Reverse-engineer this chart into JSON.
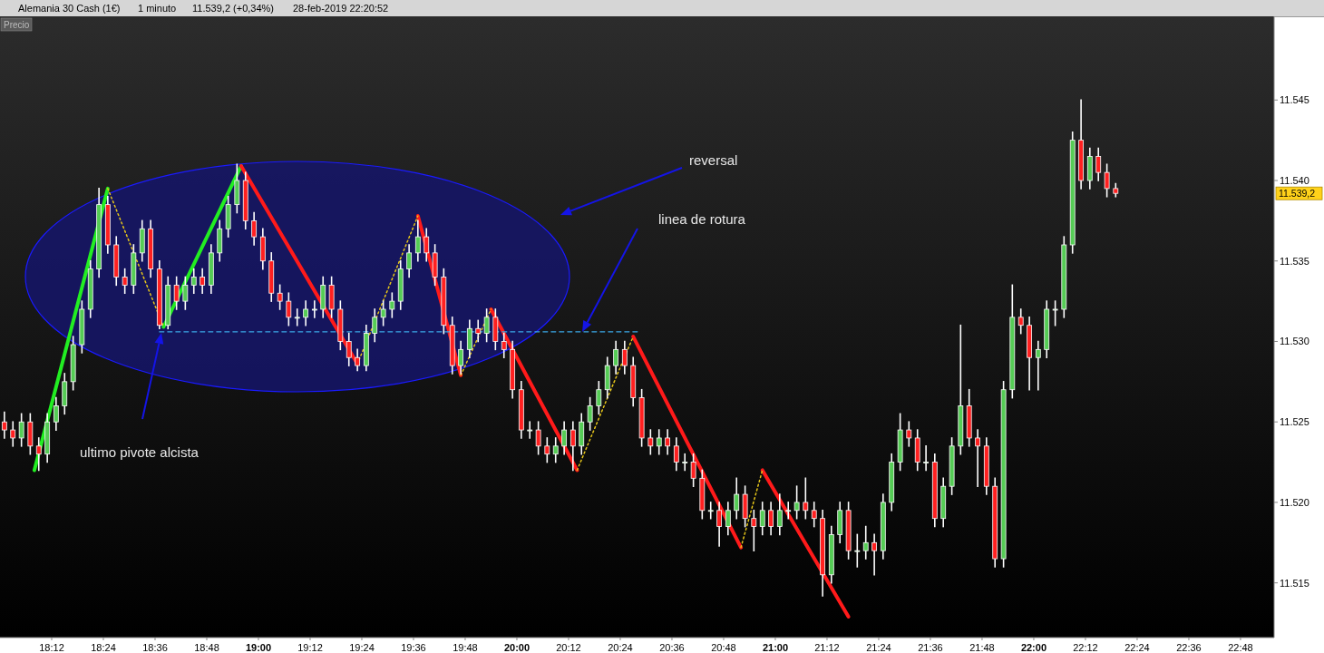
{
  "chart_data": {
    "type": "candlestick",
    "title": "Alemania 30 Cash (1€)",
    "subtitle": "1 minuto",
    "x": [
      18.017,
      18.05,
      18.083,
      18.117,
      18.15,
      18.183,
      18.217,
      18.25,
      18.283,
      18.317,
      18.35,
      18.383,
      18.417,
      18.45,
      18.483,
      18.517,
      18.55,
      18.583,
      18.617,
      18.65,
      18.683,
      18.717,
      18.75,
      18.783,
      18.817,
      18.85,
      18.883,
      18.917,
      18.95,
      18.983,
      19.017,
      19.05,
      19.083,
      19.117,
      19.15,
      19.183,
      19.217,
      19.25,
      19.283,
      19.317,
      19.35,
      19.383,
      19.417,
      19.45,
      19.483,
      19.517,
      19.55,
      19.583,
      19.617,
      19.65,
      19.683,
      19.717,
      19.75,
      19.783,
      19.817,
      19.85,
      19.883,
      19.917,
      19.95,
      19.983,
      20.017,
      20.05,
      20.083,
      20.117,
      20.15,
      20.183,
      20.217,
      20.25,
      20.283,
      20.317,
      20.35,
      20.383,
      20.417,
      20.45,
      20.483,
      20.517,
      20.55,
      20.583,
      20.617,
      20.65,
      20.683,
      20.717,
      20.75,
      20.783,
      20.817,
      20.85,
      20.883,
      20.917,
      20.95,
      20.983,
      21.017,
      21.05,
      21.083,
      21.117,
      21.15,
      21.183,
      21.217,
      21.25,
      21.283,
      21.317,
      21.35,
      21.383,
      21.417,
      21.45,
      21.483,
      21.517,
      21.55,
      21.583,
      21.617,
      21.65,
      21.683,
      21.717,
      21.75,
      21.783,
      21.817,
      21.85,
      21.883,
      21.917,
      21.95,
      21.983,
      22.017,
      22.05,
      22.083,
      22.117,
      22.15,
      22.183,
      22.217,
      22.25,
      22.283,
      22.317
    ],
    "ohlc": [
      [
        11525,
        11525.6,
        11524,
        11524.5
      ],
      [
        11524.5,
        11525,
        11523.5,
        11524
      ],
      [
        11524,
        11525.5,
        11523.5,
        11525
      ],
      [
        11525,
        11525.5,
        11523,
        11523.5
      ],
      [
        11523.5,
        11524,
        11522,
        11523
      ],
      [
        11523,
        11525.5,
        11522.5,
        11525
      ],
      [
        11525,
        11526.5,
        11524.5,
        11526
      ],
      [
        11526,
        11528,
        11525.5,
        11527.5
      ],
      [
        11527.5,
        11530.3,
        11527,
        11529.8
      ],
      [
        11529.8,
        11532.5,
        11529.3,
        11532
      ],
      [
        11532,
        11535,
        11531.5,
        11534.5
      ],
      [
        11534.5,
        11539.5,
        11534,
        11538.5
      ],
      [
        11538.5,
        11539,
        11535.5,
        11536
      ],
      [
        11536,
        11536.5,
        11533.5,
        11534
      ],
      [
        11534,
        11534.5,
        11533,
        11533.5
      ],
      [
        11533.5,
        11536,
        11533,
        11535.5
      ],
      [
        11535.5,
        11537.5,
        11535,
        11537
      ],
      [
        11537,
        11537.5,
        11534,
        11534.5
      ],
      [
        11534.5,
        11535,
        11530.8,
        11531
      ],
      [
        11531,
        11534,
        11530.8,
        11533.5
      ],
      [
        11533.5,
        11534,
        11532,
        11532.5
      ],
      [
        11532.5,
        11534,
        11532,
        11533.5
      ],
      [
        11533.5,
        11534.5,
        11533,
        11534
      ],
      [
        11534,
        11534.5,
        11533,
        11533.5
      ],
      [
        11533.5,
        11536,
        11533,
        11535.5
      ],
      [
        11535.5,
        11537.5,
        11535,
        11537
      ],
      [
        11537,
        11539,
        11536.5,
        11538.5
      ],
      [
        11538.5,
        11541,
        11538,
        11540
      ],
      [
        11540,
        11540.5,
        11537,
        11537.5
      ],
      [
        11537.5,
        11538,
        11536,
        11536.5
      ],
      [
        11536.5,
        11537,
        11534.5,
        11535
      ],
      [
        11535,
        11535.5,
        11532.5,
        11533
      ],
      [
        11533,
        11533.5,
        11532,
        11532.5
      ],
      [
        11532.5,
        11533,
        11531,
        11531.5
      ],
      [
        11531.5,
        11532,
        11531,
        11531.5
      ],
      [
        11531.5,
        11532.5,
        11531,
        11532
      ],
      [
        11532,
        11532.5,
        11531.5,
        11532
      ],
      [
        11532,
        11534,
        11531.5,
        11533.5
      ],
      [
        11533.5,
        11534,
        11531.5,
        11532
      ],
      [
        11532,
        11532.5,
        11529.5,
        11530
      ],
      [
        11530,
        11530.5,
        11528.5,
        11529
      ],
      [
        11529,
        11529.5,
        11528.2,
        11528.5
      ],
      [
        11528.5,
        11531,
        11528.2,
        11530.5
      ],
      [
        11530.5,
        11532,
        11530,
        11531.5
      ],
      [
        11531.5,
        11532.5,
        11531,
        11532
      ],
      [
        11532,
        11533,
        11531.5,
        11532.5
      ],
      [
        11532.5,
        11535,
        11532,
        11534.5
      ],
      [
        11534.5,
        11536,
        11534,
        11535.5
      ],
      [
        11535.5,
        11537.5,
        11535,
        11536.5
      ],
      [
        11536.5,
        11537,
        11535,
        11535.5
      ],
      [
        11535.5,
        11536,
        11533.5,
        11534
      ],
      [
        11534,
        11534.5,
        11530.5,
        11531
      ],
      [
        11531,
        11531.5,
        11528,
        11528.5
      ],
      [
        11528.5,
        11530,
        11528,
        11529.5
      ],
      [
        11529.5,
        11531.3,
        11529,
        11530.8
      ],
      [
        11530.8,
        11531.3,
        11530,
        11530.5
      ],
      [
        11530.5,
        11532,
        11530,
        11531.5
      ],
      [
        11531.5,
        11532,
        11529.5,
        11530
      ],
      [
        11530,
        11530.5,
        11529,
        11529.5
      ],
      [
        11529.5,
        11530,
        11526.5,
        11527
      ],
      [
        11527,
        11527.5,
        11524,
        11524.5
      ],
      [
        11524.5,
        11525,
        11524,
        11524.5
      ],
      [
        11524.5,
        11525,
        11523,
        11523.5
      ],
      [
        11523.5,
        11524,
        11522.5,
        11523
      ],
      [
        11523,
        11524,
        11522.5,
        11523.5
      ],
      [
        11523.5,
        11525,
        11523,
        11524.5
      ],
      [
        11524.5,
        11525,
        11522,
        11523.5
      ],
      [
        11523.5,
        11525.5,
        11523,
        11525
      ],
      [
        11525,
        11526.5,
        11524.5,
        11526
      ],
      [
        11526,
        11527.5,
        11525.5,
        11527
      ],
      [
        11527,
        11529,
        11526.5,
        11528.5
      ],
      [
        11528.5,
        11530,
        11528,
        11529.5
      ],
      [
        11529.5,
        11530,
        11528,
        11528.5
      ],
      [
        11528.5,
        11529,
        11526,
        11526.5
      ],
      [
        11526.5,
        11527,
        11523.5,
        11524
      ],
      [
        11524,
        11524.5,
        11523,
        11523.5
      ],
      [
        11523.5,
        11524.5,
        11523,
        11524
      ],
      [
        11524,
        11524.5,
        11523,
        11523.5
      ],
      [
        11523.5,
        11524,
        11522,
        11522.5
      ],
      [
        11522.5,
        11523,
        11522,
        11522.5
      ],
      [
        11522.5,
        11523,
        11521,
        11521.5
      ],
      [
        11521.5,
        11522,
        11519,
        11519.5
      ],
      [
        11519.5,
        11520,
        11519,
        11519.5
      ],
      [
        11519.5,
        11520,
        11517.3,
        11518.5
      ],
      [
        11518.5,
        11520,
        11518,
        11519.5
      ],
      [
        11519.5,
        11521.5,
        11519,
        11520.5
      ],
      [
        11520.5,
        11521,
        11518.5,
        11519
      ],
      [
        11519,
        11519.5,
        11517,
        11518.5
      ],
      [
        11518.5,
        11520,
        11518,
        11519.5
      ],
      [
        11519.5,
        11520,
        11518,
        11518.5
      ],
      [
        11518.5,
        11520.5,
        11518,
        11519.5
      ],
      [
        11519.5,
        11520,
        11519,
        11519.5
      ],
      [
        11519.5,
        11521,
        11519,
        11520
      ],
      [
        11520,
        11521.5,
        11519,
        11519.5
      ],
      [
        11519.5,
        11520,
        11518.5,
        11519
      ],
      [
        11519,
        11519.5,
        11514.2,
        11515.5
      ],
      [
        11515.5,
        11518.5,
        11515,
        11518
      ],
      [
        11518,
        11520,
        11517.5,
        11519.5
      ],
      [
        11519.5,
        11520,
        11516.5,
        11517
      ],
      [
        11517,
        11518,
        11516,
        11517
      ],
      [
        11517,
        11518.5,
        11516.5,
        11517.5
      ],
      [
        11517.5,
        11518,
        11515.5,
        11517
      ],
      [
        11517,
        11520.5,
        11516.5,
        11520
      ],
      [
        11520,
        11523,
        11519.5,
        11522.5
      ],
      [
        11522.5,
        11525.5,
        11522,
        11524.5
      ],
      [
        11524.5,
        11525,
        11523.5,
        11524
      ],
      [
        11524,
        11524.5,
        11522,
        11522.5
      ],
      [
        11522.5,
        11523.5,
        11522,
        11522.5
      ],
      [
        11522.5,
        11523,
        11518.5,
        11519
      ],
      [
        11519,
        11521.5,
        11518.5,
        11521
      ],
      [
        11521,
        11524,
        11520.5,
        11523.5
      ],
      [
        11523.5,
        11531,
        11523,
        11526
      ],
      [
        11526,
        11527,
        11523.5,
        11524
      ],
      [
        11524,
        11524.5,
        11521,
        11523.5
      ],
      [
        11523.5,
        11524,
        11520.5,
        11521
      ],
      [
        11521,
        11521.5,
        11516,
        11516.5
      ],
      [
        11516.5,
        11527.5,
        11516,
        11527
      ],
      [
        11527,
        11533.5,
        11526.5,
        11531.5
      ],
      [
        11531.5,
        11532,
        11530.5,
        11531
      ],
      [
        11531,
        11531.5,
        11527,
        11529
      ],
      [
        11529,
        11530,
        11527,
        11529.5
      ],
      [
        11529.5,
        11532.5,
        11529,
        11532
      ],
      [
        11532,
        11532.5,
        11531,
        11532
      ],
      [
        11532,
        11536.5,
        11531.5,
        11536
      ],
      [
        11536,
        11543,
        11535.5,
        11542.5
      ],
      [
        11542.5,
        11545,
        11539.5,
        11540
      ],
      [
        11540,
        11542,
        11539.5,
        11541.5
      ],
      [
        11541.5,
        11542,
        11540,
        11540.5
      ],
      [
        11540.5,
        11541,
        11539,
        11539.5
      ],
      [
        11539.5,
        11539.8,
        11539,
        11539.2
      ]
    ],
    "series": [
      {
        "type": "line",
        "color": "#22ee22",
        "line_style": "solid",
        "x": [
          18.133,
          18.417
        ],
        "values": [
          11522,
          11539.5
        ]
      },
      {
        "type": "line",
        "color": "#22ee22",
        "line_style": "solid",
        "x": [
          18.633,
          18.933
        ],
        "values": [
          11530.9,
          11540.9
        ]
      },
      {
        "type": "line",
        "color": "#ff1a1a",
        "line_style": "solid",
        "x": [
          18.933,
          19.383
        ],
        "values": [
          11540.9,
          11528.6
        ]
      },
      {
        "type": "line",
        "color": "#ff1a1a",
        "line_style": "solid",
        "x": [
          19.617,
          19.783
        ],
        "values": [
          11537.8,
          11527.9
        ]
      },
      {
        "type": "line",
        "color": "#ff1a1a",
        "line_style": "solid",
        "x": [
          19.9,
          20.233
        ],
        "values": [
          11532,
          11522
        ]
      },
      {
        "type": "line",
        "color": "#ff1a1a",
        "line_style": "solid",
        "x": [
          20.45,
          20.867
        ],
        "values": [
          11530.3,
          11517.2
        ]
      },
      {
        "type": "line",
        "color": "#ff1a1a",
        "line_style": "solid",
        "x": [
          20.95,
          21.283
        ],
        "values": [
          11522,
          11512.9
        ]
      },
      {
        "type": "line",
        "color": "#e6c619",
        "line_style": "dotted",
        "x": [
          18.417,
          18.633
        ],
        "values": [
          11539.5,
          11530.9
        ]
      },
      {
        "type": "line",
        "color": "#e6c619",
        "line_style": "dotted",
        "x": [
          19.383,
          19.617
        ],
        "values": [
          11528.6,
          11537.8
        ]
      },
      {
        "type": "line",
        "color": "#e6c619",
        "line_style": "dotted",
        "x": [
          19.783,
          19.9
        ],
        "values": [
          11527.9,
          11532
        ]
      },
      {
        "type": "line",
        "color": "#e6c619",
        "line_style": "dotted",
        "x": [
          20.233,
          20.45
        ],
        "values": [
          11522,
          11530.3
        ]
      },
      {
        "type": "line",
        "color": "#e6c619",
        "line_style": "dotted",
        "x": [
          20.867,
          20.95
        ],
        "values": [
          11517.2,
          11522
        ]
      },
      {
        "type": "line",
        "color": "#3aa6e6",
        "line_style": "dashed",
        "x": [
          18.617,
          20.475
        ],
        "values": [
          11530.6,
          11530.6
        ]
      }
    ],
    "xlim": [
      18.0,
      22.93
    ],
    "xticks": [
      {
        "value": 18.2,
        "label": "18:12"
      },
      {
        "value": 18.4,
        "label": "18:24"
      },
      {
        "value": 18.6,
        "label": "18:36"
      },
      {
        "value": 18.8,
        "label": "18:48"
      },
      {
        "value": 19,
        "label": "19:00"
      },
      {
        "value": 19.2,
        "label": "19:12"
      },
      {
        "value": 19.4,
        "label": "19:24"
      },
      {
        "value": 19.6,
        "label": "19:36"
      },
      {
        "value": 19.8,
        "label": "19:48"
      },
      {
        "value": 20,
        "label": "20:00"
      },
      {
        "value": 20.2,
        "label": "20:12"
      },
      {
        "value": 20.4,
        "label": "20:24"
      },
      {
        "value": 20.6,
        "label": "20:36"
      },
      {
        "value": 20.8,
        "label": "20:48"
      },
      {
        "value": 21,
        "label": "21:00"
      },
      {
        "value": 21.2,
        "label": "21:12"
      },
      {
        "value": 21.4,
        "label": "21:24"
      },
      {
        "value": 21.6,
        "label": "21:36"
      },
      {
        "value": 21.8,
        "label": "21:48"
      },
      {
        "value": 22,
        "label": "22:00"
      },
      {
        "value": 22.2,
        "label": "22:12"
      },
      {
        "value": 22.4,
        "label": "22:24"
      },
      {
        "value": 22.6,
        "label": "22:36"
      },
      {
        "value": 22.8,
        "label": "22:48"
      }
    ],
    "ylim": [
      11511.6,
      11550.2
    ],
    "yticks": [
      {
        "value": 11515,
        "label": "11.515"
      },
      {
        "value": 11520,
        "label": "11.520"
      },
      {
        "value": 11525,
        "label": "11.525"
      },
      {
        "value": 11530,
        "label": "11.530"
      },
      {
        "value": 11535,
        "label": "11.535"
      },
      {
        "value": 11540,
        "label": "11.540"
      },
      {
        "value": 11545,
        "label": "11.545"
      }
    ],
    "annotations": [
      "11.539,2 (+0,34%)",
      "28-feb-2019 22:20:52",
      "Precio",
      "reversal",
      "linea de rotura",
      "ultimo pivote alcista",
      "11.539,2"
    ]
  }
}
